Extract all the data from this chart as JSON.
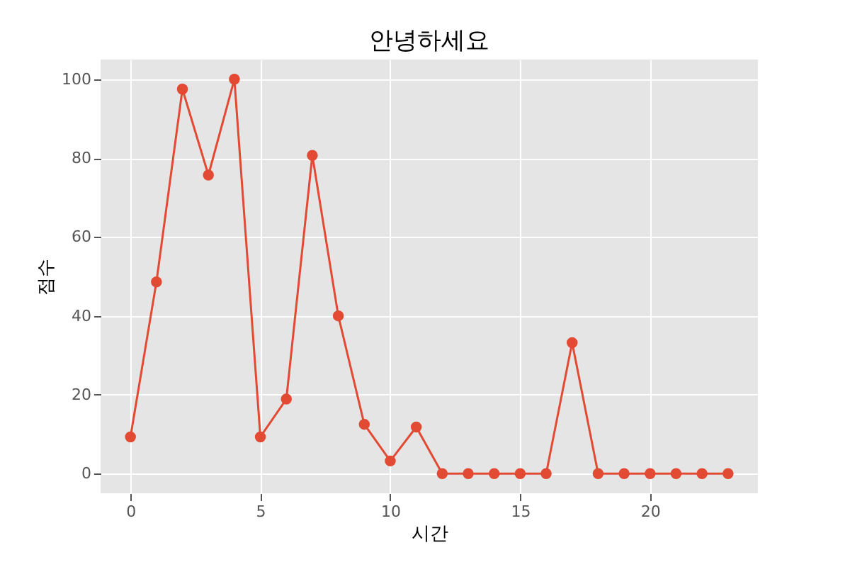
{
  "chart_data": {
    "type": "line",
    "title": "안녕하세요",
    "xlabel": "시간",
    "ylabel": "점수",
    "x": [
      0,
      1,
      2,
      3,
      4,
      5,
      6,
      7,
      8,
      9,
      10,
      11,
      12,
      13,
      14,
      15,
      16,
      17,
      18,
      19,
      20,
      21,
      22,
      23
    ],
    "series": [
      {
        "color": "#e24a33",
        "values": [
          9.3,
          48.6,
          97.5,
          75.7,
          100,
          9.3,
          18.9,
          80.7,
          40,
          12.5,
          3.2,
          11.8,
          0,
          0,
          0,
          0,
          0,
          33.2,
          0,
          0,
          0,
          0,
          0,
          0
        ]
      }
    ],
    "xlim": [
      -1.15,
      24.15
    ],
    "xticks": [
      0,
      5,
      10,
      15,
      20
    ],
    "ylim": [
      -5,
      105
    ],
    "yticks": [
      0,
      20,
      40,
      60,
      80,
      100
    ],
    "grid": true,
    "marker": "circle",
    "line_style": "solid"
  }
}
